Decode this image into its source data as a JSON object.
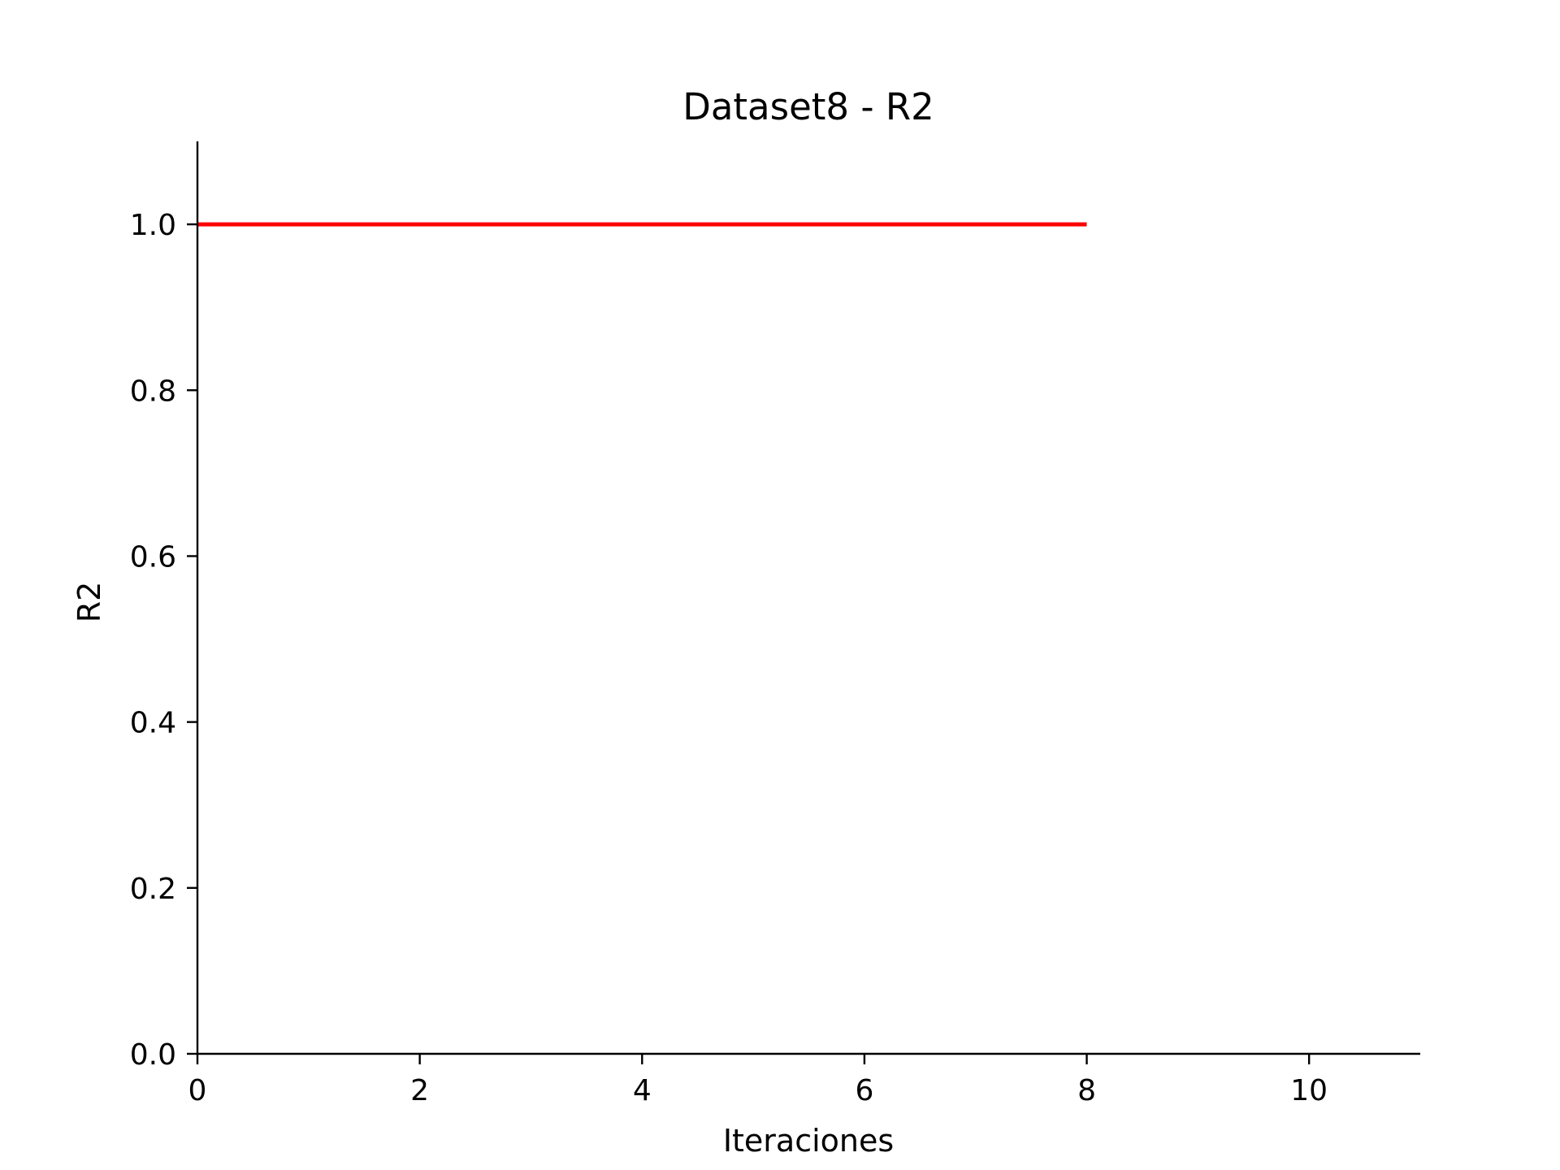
{
  "chart_data": {
    "type": "line",
    "title": "Dataset8 - R2",
    "xlabel": "Iteraciones",
    "ylabel": "R2",
    "xlim": [
      0,
      11
    ],
    "ylim": [
      0,
      1.1
    ],
    "xticks": [
      0,
      2,
      4,
      6,
      8,
      10
    ],
    "yticks": [
      0.0,
      0.2,
      0.4,
      0.6,
      0.8,
      1.0
    ],
    "xtick_labels": [
      "0",
      "2",
      "4",
      "6",
      "8",
      "10"
    ],
    "ytick_labels": [
      "0.0",
      "0.2",
      "0.4",
      "0.6",
      "0.8",
      "1.0"
    ],
    "grid": false,
    "series": [
      {
        "color": "#ff0000",
        "x": [
          0,
          1,
          2,
          3,
          4,
          5,
          6,
          7,
          8
        ],
        "y": [
          1.0,
          1.0,
          1.0,
          1.0,
          1.0,
          1.0,
          1.0,
          1.0,
          1.0
        ]
      }
    ]
  }
}
